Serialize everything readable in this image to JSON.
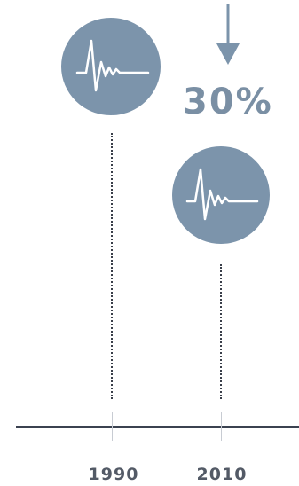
{
  "change": {
    "direction": "down",
    "percent_label": "30%"
  },
  "timeline": {
    "years": [
      "1990",
      "2010"
    ]
  },
  "icons": [
    "heartbeat-icon",
    "heartbeat-icon",
    "arrow-down-icon"
  ],
  "colors": {
    "circle": "#7c94ab",
    "percent_text": "#7a8fa4",
    "axis": "#3b4250",
    "year_text": "#535a66"
  }
}
